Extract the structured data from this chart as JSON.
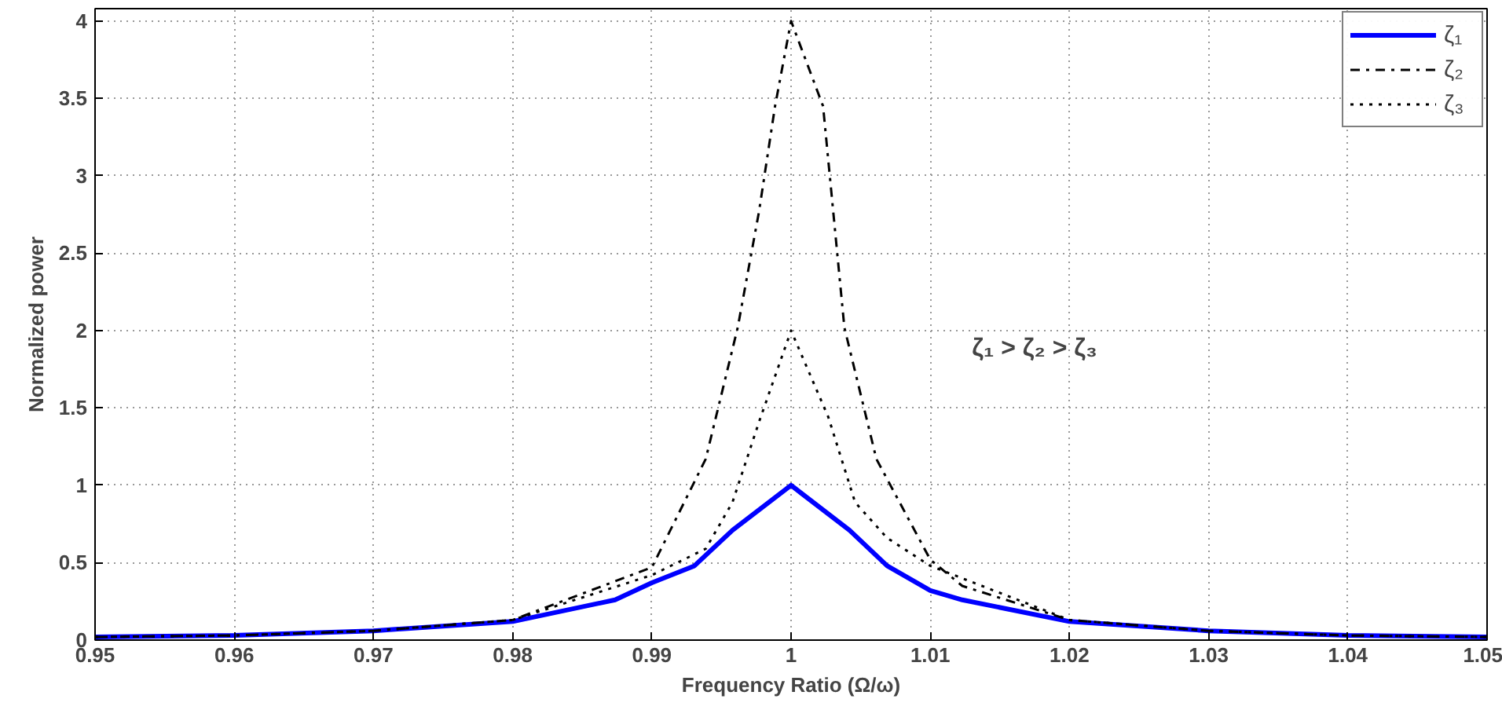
{
  "chart_data": {
    "type": "line",
    "xlabel": "Frequency Ratio (Ω/ω)",
    "ylabel": "Normalized power",
    "annotations": [
      "ζ₁ > ζ₂ > ζ₃"
    ],
    "xlim": [
      0.95,
      1.05
    ],
    "ylim": [
      0,
      4.08
    ],
    "xticks": [
      0.95,
      0.96,
      0.97,
      0.98,
      0.99,
      1,
      1.01,
      1.02,
      1.03,
      1.04,
      1.05
    ],
    "yticks": [
      0,
      0.5,
      1,
      1.5,
      2,
      2.5,
      3,
      3.5,
      4
    ],
    "grid": true,
    "legend": "top right",
    "series": [
      {
        "name": "ζ₁",
        "color": "#0000ff",
        "line_style": "solid",
        "x": [
          0.95,
          0.96,
          0.97,
          0.98,
          0.98736,
          0.99,
          0.99306,
          0.99579,
          1,
          1.0042,
          1.0069,
          1.01,
          1.0123,
          1.02,
          1.03,
          1.04,
          1.05
        ],
        "values": [
          0.02,
          0.03,
          0.06,
          0.12,
          0.26,
          0.37,
          0.48,
          0.71,
          1,
          0.71,
          0.48,
          0.32,
          0.26,
          0.12,
          0.06,
          0.03,
          0.02
        ]
      },
      {
        "name": "ζ₂",
        "color": "#000000",
        "line_style": "dashdot",
        "x": [
          0.95,
          0.96,
          0.97,
          0.98,
          0.99,
          0.99387,
          0.99617,
          0.9977,
          0.99885,
          1,
          1.0023,
          1.00383,
          1.00613,
          1.01,
          1.0123,
          1.02,
          1.03,
          1.04,
          1.05
        ],
        "values": [
          0.02,
          0.03,
          0.06,
          0.13,
          0.47,
          1.17,
          2.02,
          2.77,
          3.45,
          4,
          3.45,
          2.02,
          1.17,
          0.52,
          0.35,
          0.13,
          0.06,
          0.03,
          0.02
        ]
      },
      {
        "name": "ζ₃",
        "color": "#000000",
        "line_style": "dotted",
        "x": [
          0.95,
          0.96,
          0.97,
          0.98,
          0.99,
          0.99387,
          0.99579,
          0.9977,
          1,
          1.00268,
          1.0046,
          1.0069,
          1.01,
          1.02,
          1.03,
          1.04,
          1.05
        ],
        "values": [
          0.02,
          0.03,
          0.06,
          0.13,
          0.42,
          0.59,
          0.89,
          1.41,
          2,
          1.44,
          0.89,
          0.66,
          0.48,
          0.13,
          0.06,
          0.03,
          0.02
        ]
      }
    ]
  }
}
